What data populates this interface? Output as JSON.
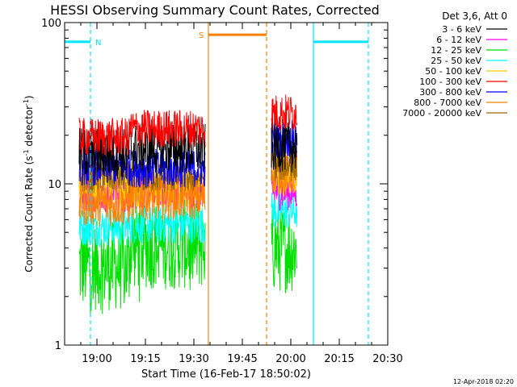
{
  "chart_data": {
    "type": "line",
    "title": "HESSI Observing Summary Count Rates, Corrected",
    "xlabel": "Start Time (16-Feb-17 18:50:02)",
    "ylabel": "Corrected Count Rate (s",
    "ylabel_sup1": "-1",
    "ylabel_mid": " detector",
    "ylabel_sup2": "-1",
    "ylabel_end": ")",
    "y_scale": "log",
    "ylim": [
      1,
      100
    ],
    "xlim_minutes_after_1850": [
      0,
      100
    ],
    "x_ticks": [
      {
        "label": "19:00",
        "t": 10
      },
      {
        "label": "19:15",
        "t": 25
      },
      {
        "label": "19:30",
        "t": 40
      },
      {
        "label": "19:45",
        "t": 55
      },
      {
        "label": "20:00",
        "t": 70
      },
      {
        "label": "20:15",
        "t": 85
      },
      {
        "label": "20:30",
        "t": 100
      }
    ],
    "y_ticks": [
      {
        "label": "1",
        "v": 1
      },
      {
        "label": "10",
        "v": 10
      },
      {
        "label": "100",
        "v": 100
      }
    ],
    "legend": {
      "title": "Det 3,6, Att 0",
      "placement": "right"
    },
    "series": [
      {
        "name": "3 - 6 keV",
        "color": "#000000",
        "level_a": 15.5,
        "level_b": 16.5,
        "level_c": 17.0,
        "spread": 0.16
      },
      {
        "name": "6 - 12 keV",
        "color": "#ff00ff",
        "level_a": 8.8,
        "level_b": 9.2,
        "level_c": 9.0,
        "spread": 0.12
      },
      {
        "name": "12 - 25 keV",
        "color": "#00e000",
        "level_a": 3.1,
        "level_b": 4.2,
        "level_c": 4.0,
        "spread": 0.28
      },
      {
        "name": "25 - 50 keV",
        "color": "#00ffff",
        "level_a": 5.4,
        "level_b": 5.6,
        "level_c": 6.8,
        "spread": 0.12
      },
      {
        "name": "50 - 100 keV",
        "color": "#ffcc00",
        "level_a": 9.6,
        "level_b": 9.5,
        "level_c": 11.0,
        "spread": 0.12
      },
      {
        "name": "100 - 300 keV",
        "color": "#ff0000",
        "level_a": 19.5,
        "level_b": 22.0,
        "level_c": 27.5,
        "spread": 0.12
      },
      {
        "name": "300 - 800 keV",
        "color": "#0000ff",
        "level_a": 12.8,
        "level_b": 12.5,
        "level_c": 19.0,
        "spread": 0.12
      },
      {
        "name": "800 - 7000 keV",
        "color": "#ff7f00",
        "level_a": 7.5,
        "level_b": 8.2,
        "level_c": 12.0,
        "spread": 0.14
      },
      {
        "name": "7000 - 20000 keV",
        "color": "#996600",
        "level_a": 11.0,
        "level_b": 11.0,
        "level_c": 13.0,
        "spread": 0.1
      }
    ],
    "data_intervals_minutes": [
      {
        "start": 4.5,
        "end": 43.5
      },
      {
        "start": 64.0,
        "end": 72.0
      }
    ],
    "annotations": [
      {
        "label": "N",
        "type": "night",
        "color": "#00e5ff",
        "start": -3,
        "end": 8,
        "level": 76
      },
      {
        "label": "S",
        "type": "saa",
        "color": "#ff7f00",
        "start": 44.5,
        "end": 62.5,
        "level": 84
      },
      {
        "label": "",
        "type": "night",
        "color": "#00e5ff",
        "start": 77,
        "end": 94,
        "level": 76
      }
    ],
    "vertical_markers": [
      {
        "t": -0.5,
        "color": "#00e5ff",
        "style": "solid"
      },
      {
        "t": 8.0,
        "color": "#00e5ff",
        "style": "dashed"
      },
      {
        "t": 44.5,
        "color": "#ff7f00",
        "style": "solid"
      },
      {
        "t": 62.5,
        "color": "#ff7f00",
        "style": "dashed"
      },
      {
        "t": 77.0,
        "color": "#00e5ff",
        "style": "solid"
      },
      {
        "t": 94.0,
        "color": "#00e5ff",
        "style": "dashed"
      }
    ]
  },
  "footer": {
    "timestamp": "12-Apr-2018 02:20"
  }
}
